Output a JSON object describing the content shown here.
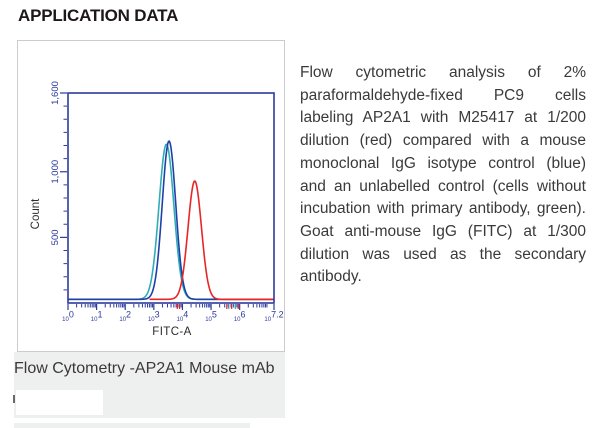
{
  "header": {
    "title": "APPLICATION DATA"
  },
  "caption": {
    "text": "Flow Cytometry -AP2A1 Mouse mAb"
  },
  "description": {
    "text": "Flow cytometric analysis of 2% paraformaldehyde-fixed PC9 cells labeling AP2A1 with M25417 at 1/200 dilution (red) compared with a mouse monoclonal IgG isotype control (blue) and an unlabelled control (cells without incubation with primary antibody, green). Goat anti-mouse IgG (FITC) at 1/300 dilution was used as the secondary antibody.",
    "sample": "PC9 cells",
    "antibody": "M25417",
    "primary_dilution": "1/200",
    "secondary": "Goat anti-mouse IgG (FITC)",
    "secondary_dilution": "1/300"
  },
  "colors": {
    "axis_blue": "#2c3a9d",
    "red": "#e62629",
    "blue": "#2040a8",
    "green": "#2fadb9",
    "panel_border": "#cccccc",
    "caption_bg": "#eef0ef",
    "heading_text": "#1c1719",
    "body_text": "#3a3a3a",
    "axis_title_text": "#2b2b2b"
  },
  "chart_data": {
    "type": "line",
    "subtype": "flow-cytometry-histogram-overlay",
    "title": "",
    "xlabel": "FITC-A",
    "ylabel": "Count",
    "x_scale": "log10",
    "xlim_decades": [
      0,
      7.2
    ],
    "ylim": [
      0,
      1600
    ],
    "grid": false,
    "legend": "none",
    "x_ticks": [
      {
        "pos": 0,
        "base": "10",
        "exp": "0"
      },
      {
        "pos": 1,
        "base": "10",
        "exp": "1"
      },
      {
        "pos": 2,
        "base": "10",
        "exp": "2"
      },
      {
        "pos": 3,
        "base": "10",
        "exp": "3"
      },
      {
        "pos": 4,
        "base": "10",
        "exp": "4"
      },
      {
        "pos": 5,
        "base": "10",
        "exp": "5"
      },
      {
        "pos": 6,
        "base": "10",
        "exp": "6"
      },
      {
        "pos": 7.2,
        "base": "10",
        "exp": "7.2"
      }
    ],
    "y_ticks": [
      {
        "value": 500,
        "label": "500"
      },
      {
        "value": 1000,
        "label": "1,000"
      },
      {
        "value": 1600,
        "label": "1,600"
      }
    ],
    "y_minor_step": 100,
    "series": [
      {
        "name": "unlabelled control (green)",
        "color_key": "green",
        "peak_log10_fitc": 3.44,
        "peak_count": 1210,
        "sigma_log10": 0.26,
        "baseline_count": 28,
        "start_decade": 0
      },
      {
        "name": "mouse IgG isotype control (blue)",
        "color_key": "blue",
        "peak_log10_fitc": 3.53,
        "peak_count": 1235,
        "sigma_log10": 0.235,
        "baseline_count": 28,
        "start_decade": 0
      },
      {
        "name": "AP2A1 M25417 1/200 (red)",
        "color_key": "red",
        "peak_log10_fitc": 4.43,
        "peak_count": 930,
        "sigma_log10": 0.235,
        "baseline_count": 28,
        "start_decade": 2.85
      }
    ],
    "rug_marks": [
      {
        "color_key": "red",
        "positions": [
          3.82,
          3.9,
          5.55,
          5.72,
          5.95
        ]
      },
      {
        "color_key": "green",
        "positions": [
          5.62,
          5.85
        ]
      }
    ]
  }
}
